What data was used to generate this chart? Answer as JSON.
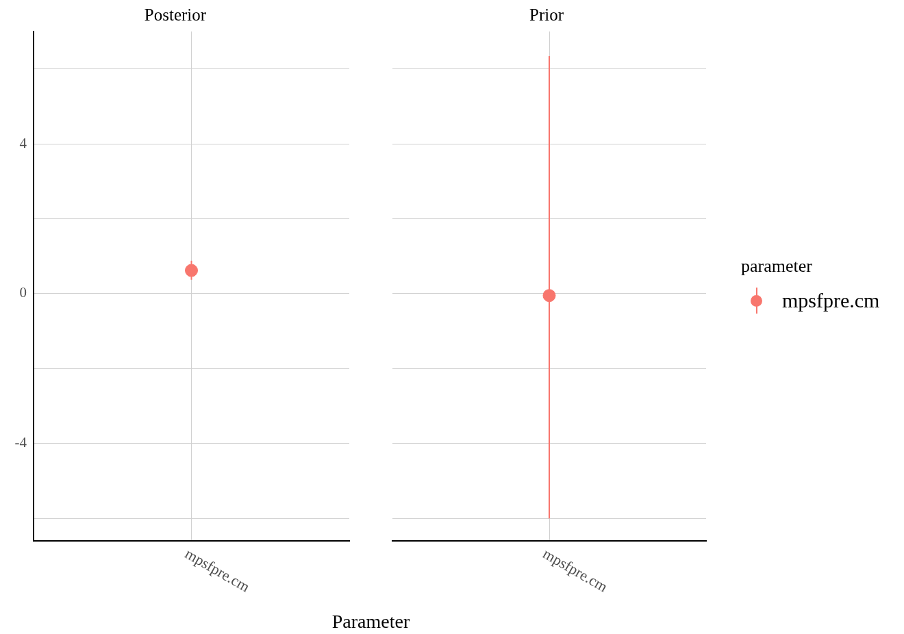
{
  "chart_data": [
    {
      "type": "scatter",
      "title": "Posterior",
      "xlabel": "Parameter",
      "categories": [
        "mpsfpre.cm"
      ],
      "series": [
        {
          "color": "#f8766d",
          "values": [
            0.62
          ],
          "errors": [
            [
              0.37,
              0.88
            ]
          ]
        }
      ],
      "ylim": [
        -6.6,
        7
      ],
      "yticks": [
        {
          "value": -6,
          "label": null
        },
        -4,
        {
          "value": -2,
          "label": null
        },
        0,
        {
          "value": 2,
          "label": null
        },
        4,
        {
          "value": 6,
          "label": null
        }
      ],
      "grid": true,
      "marker": "circle"
    },
    {
      "type": "scatter",
      "title": "Prior",
      "categories": [
        "mpsfpre.cm"
      ],
      "series": [
        {
          "name": "mpsfpre.cm",
          "color": "#f8766d",
          "values": [
            -0.05
          ],
          "errors": [
            [
              -6,
              6.34
            ]
          ]
        }
      ],
      "ylim": [
        -6.6,
        7
      ],
      "yticks": [
        {
          "value": -6,
          "label": null
        },
        -4,
        {
          "value": -2,
          "label": null
        },
        0,
        {
          "value": 2,
          "label": null
        },
        4,
        {
          "value": 6,
          "label": null
        }
      ],
      "grid": true,
      "marker": "circle",
      "tick_labels": "x",
      "legend": "right",
      "legend_title": "parameter"
    }
  ]
}
